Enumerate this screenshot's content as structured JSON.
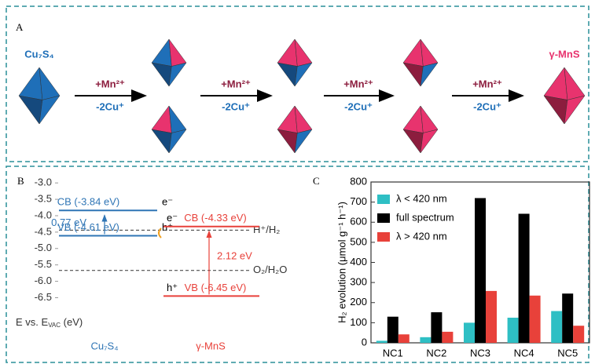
{
  "panel_a": {
    "letter": "A",
    "start": "Cu₇S₄",
    "end": "γ-MnS",
    "steps": [
      {
        "top": "+Mn²⁺",
        "bottom": "-2Cu⁺"
      },
      {
        "top": "+Mn²⁺",
        "bottom": "-2Cu⁺"
      },
      {
        "top": "+Mn²⁺",
        "bottom": "-2Cu⁺"
      },
      {
        "top": "+Mn²⁺",
        "bottom": "-2Cu⁺"
      }
    ]
  },
  "chart_data": [
    {
      "type": "energy-level",
      "letter": "B",
      "axis_label": {
        "main": "E vs. E",
        "sub": "VAC",
        "unit": " (eV)"
      },
      "ylim": [
        -6.8,
        -2.9
      ],
      "yticks": [
        {
          "value": -3,
          "label": "-3.0"
        },
        -3.5,
        {
          "value": -4,
          "label": "-4.0"
        },
        -4.5,
        {
          "value": -5,
          "label": "-5.0"
        },
        -5.5,
        {
          "value": -6,
          "label": "-6.0"
        },
        -6.5
      ],
      "materials": [
        {
          "name": "Cu₇S₄",
          "color": "#2f75b5",
          "gap": "0.77 eV",
          "levels": [
            {
              "label": "CB (-3.84 eV)",
              "value": -3.84,
              "carrier": "e⁻"
            },
            {
              "label": "VB (-4.61 eV)",
              "value": -4.61,
              "carrier": "h⁺"
            }
          ]
        },
        {
          "name": "γ-MnS",
          "color": "#e8413a",
          "gap": "2.12 eV",
          "levels": [
            {
              "label": "CB (-4.33 eV)",
              "value": -4.33,
              "carrier": "e⁻"
            },
            {
              "label": "VB (-6.45 eV)",
              "value": -6.45,
              "carrier": "h⁺"
            }
          ]
        }
      ],
      "references": [
        {
          "label": "H⁺/H₂",
          "value": -4.44
        },
        {
          "label": "O₂/H₂O",
          "value": -5.67
        }
      ]
    },
    {
      "type": "bar",
      "letter": "C",
      "y_label": "H₂ evolution (μmol g⁻¹ h⁻¹)",
      "categories": [
        "NC1",
        "NC2",
        "NC3",
        "NC4",
        "NC5"
      ],
      "series": [
        {
          "name": "λ < 420 nm",
          "color": "#2ebfc4",
          "values": [
            10,
            28,
            100,
            125,
            158
          ]
        },
        {
          "name": "full spectrum",
          "color": "#000000",
          "values": [
            130,
            152,
            720,
            642,
            245
          ]
        },
        {
          "name": "λ > 420 nm",
          "color": "#e8413a",
          "values": [
            42,
            55,
            258,
            235,
            85
          ]
        }
      ],
      "ylim": [
        0,
        800
      ],
      "yticks": [
        0,
        100,
        200,
        300,
        400,
        500,
        600,
        700,
        800
      ],
      "legend": "upper-left"
    }
  ]
}
